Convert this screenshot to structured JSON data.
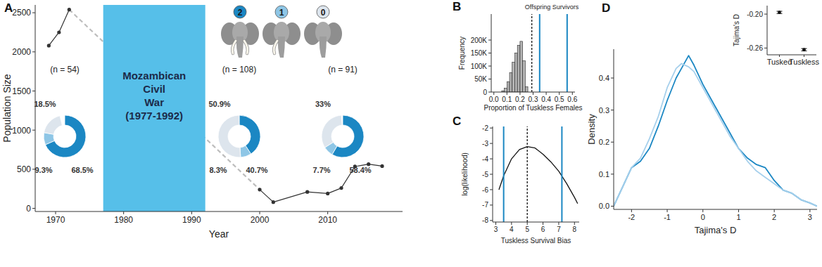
{
  "chart_data": [
    {
      "panel": "A",
      "type": "line",
      "x_label": "Year",
      "y_label": "Population Size",
      "xlim": [
        1967,
        2021
      ],
      "xticks": [
        1970,
        1980,
        1990,
        2000,
        2010
      ],
      "ylim": [
        -40,
        2600
      ],
      "yticks": [
        0,
        500,
        1000,
        1500,
        2000,
        2500
      ],
      "series": [
        {
          "x": [
            1969,
            1970.5,
            1972
          ],
          "values": [
            2080,
            2250,
            2540
          ],
          "color": "#333333",
          "marker": "circle"
        },
        {
          "x": [
            2000,
            2002,
            2007,
            2010,
            2012,
            2014,
            2016,
            2018
          ],
          "values": [
            240,
            80,
            210,
            190,
            260,
            535,
            565,
            540
          ],
          "color": "#333333",
          "marker": "circle"
        }
      ],
      "shaded_period": {
        "start": 1977,
        "end": 1992,
        "color": "#56bfe9",
        "label": [
          "Mozambican",
          "Civil",
          "War",
          "(1977-1992)"
        ]
      },
      "pie_categories": [
        "2",
        "1",
        "0"
      ],
      "pie_colors": [
        "#1b87c3",
        "#8ec6e6",
        "#dde5ed"
      ],
      "pies": [
        {
          "label": "(n = 54)",
          "values": [
            68.5,
            9.3,
            18.5
          ],
          "value_labels": [
            "68.5%",
            "9.3%",
            "18.5%"
          ]
        },
        {
          "label": "(n = 108)",
          "values": [
            40.7,
            8.3,
            50.9
          ],
          "value_labels": [
            "40.7%",
            "8.3%",
            "50.9%"
          ]
        },
        {
          "label": "(n = 91)",
          "values": [
            58.4,
            7.7,
            33
          ],
          "value_labels": [
            "58.4%",
            "7.7%",
            "33%"
          ]
        }
      ]
    },
    {
      "panel": "B",
      "type": "histogram",
      "x_label": "Proportion of Tuskless Females",
      "y_label": "Frequency",
      "bins": [
        0.06,
        0.08,
        0.1,
        0.12,
        0.14,
        0.16,
        0.18,
        0.2,
        0.22,
        0.24,
        0.26
      ],
      "values": [
        5000,
        15000,
        40000,
        75000,
        115000,
        150000,
        180000,
        195000,
        120000,
        20000
      ],
      "color": "#b4b4b4",
      "xlim": [
        -0.02,
        0.62
      ],
      "xticks": [
        {
          "value": 0,
          "label": "0.0"
        },
        0.1,
        0.2,
        0.3,
        0.4,
        0.5,
        0.6
      ],
      "ylim": [
        0,
        300000
      ],
      "yticks": [
        0,
        {
          "value": 50000,
          "label": "50K"
        },
        {
          "value": 100000,
          "label": "100K"
        },
        {
          "value": 150000,
          "label": "150K"
        },
        {
          "value": 200000,
          "label": "200K"
        }
      ],
      "vlines": [
        {
          "value": 0.29,
          "line_style": "dashed",
          "color": "#222222"
        },
        {
          "value": 0.35,
          "color": "#1b87c3"
        },
        {
          "value": 0.56,
          "color": "#1b87c3"
        }
      ],
      "annotation": "Offspring Survivors"
    },
    {
      "panel": "C",
      "type": "line",
      "x_label": "Tuskless Survival Bias",
      "y_label": "log(likelihood)",
      "x": [
        3.2,
        3.5,
        4,
        4.5,
        5,
        5.5,
        6,
        6.5,
        7,
        7.5,
        8,
        8.2
      ],
      "values": [
        -6.0,
        -5.1,
        -4.0,
        -3.4,
        -3.2,
        -3.3,
        -3.7,
        -4.2,
        -4.8,
        -5.6,
        -6.5,
        -6.9
      ],
      "color": "#111111",
      "xlim": [
        2.8,
        8.3
      ],
      "xticks": [
        3,
        4,
        5,
        6,
        7,
        8
      ],
      "ylim": [
        -8.1,
        -1.9
      ],
      "yticks": [
        -8,
        -7,
        -6,
        -5,
        -4,
        -3,
        -2
      ],
      "vlines": [
        {
          "value": 5,
          "line_style": "dashed",
          "color": "#222222"
        },
        {
          "value": 3.5,
          "color": "#1b87c3"
        },
        {
          "value": 7.2,
          "color": "#1b87c3"
        }
      ]
    },
    {
      "panel": "D",
      "type": "line",
      "x_label": "Tajima's D",
      "y_label": "Density",
      "x": [
        -2.5,
        -2.25,
        -2,
        -1.75,
        -1.5,
        -1.25,
        -1,
        -0.75,
        -0.6,
        -0.4,
        -0.25,
        0,
        0.25,
        0.5,
        0.75,
        1,
        1.25,
        1.5,
        1.75,
        2,
        2.25,
        2.5,
        2.75,
        3,
        3.2
      ],
      "series": [
        {
          "color": "#1b87c3",
          "values": [
            0.0,
            0.06,
            0.12,
            0.14,
            0.18,
            0.25,
            0.33,
            0.4,
            0.43,
            0.47,
            0.44,
            0.38,
            0.33,
            0.28,
            0.23,
            0.18,
            0.15,
            0.13,
            0.12,
            0.08,
            0.05,
            0.04,
            0.02,
            0.01,
            0.0
          ]
        },
        {
          "color": "#a6d0ec",
          "values": [
            0.0,
            0.06,
            0.12,
            0.15,
            0.21,
            0.28,
            0.37,
            0.43,
            0.445,
            0.435,
            0.42,
            0.37,
            0.32,
            0.27,
            0.22,
            0.18,
            0.14,
            0.11,
            0.09,
            0.07,
            0.05,
            0.04,
            0.02,
            0.01,
            0.0
          ]
        }
      ],
      "xlim": [
        -2.5,
        3.2
      ],
      "xticks": [
        -2,
        -1,
        0,
        1,
        2,
        3
      ],
      "ylim": [
        -0.01,
        0.49
      ],
      "yticks": [
        {
          "value": 0,
          "label": "0.0"
        },
        0.1,
        0.2,
        0.3,
        0.4
      ],
      "inset": {
        "type": "scatter",
        "y_label": "Tajima's D",
        "categories": [
          "Tusked",
          "Tuskless"
        ],
        "values": [
          -0.197,
          -0.263
        ],
        "errors": [
          0.002,
          0.002
        ],
        "color": "#111111",
        "ylim": [
          -0.272,
          -0.185
        ],
        "yticks": [
          {
            "value": -0.2,
            "label": "-0.20"
          },
          -0.26
        ]
      }
    }
  ]
}
